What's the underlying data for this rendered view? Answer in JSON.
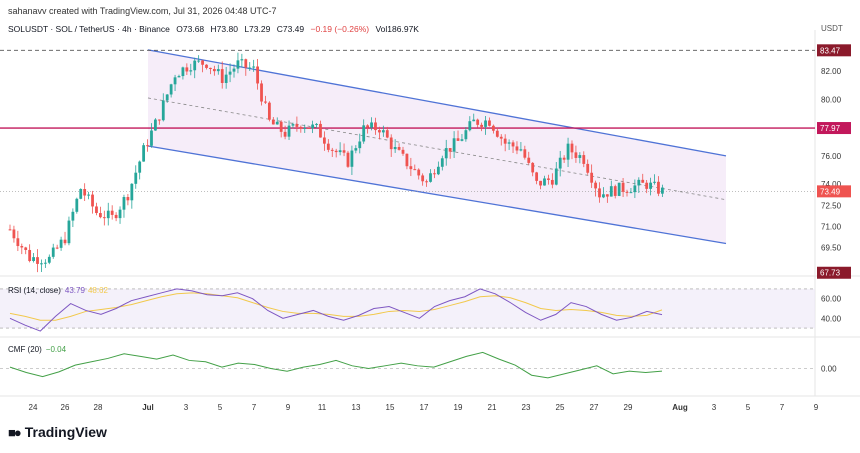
{
  "header": {
    "created_by": "sahanavv created with TradingView.com, Jul 31, 2026 04:48 UTC-7",
    "symbol": "SOLUSDT · SOL / TetherUS · 4h · Binance",
    "open": "O73.68",
    "high": "H73.80",
    "low": "L73.29",
    "close": "C73.49",
    "change": "−0.19 (−0.26%)",
    "volume": "Vol186.97K",
    "currency": "USDT"
  },
  "indicators": {
    "rsi_name": "RSI (14, close)",
    "rsi_value": "43.79",
    "rsi_ma_value": "48.62",
    "cmf_name": "CMF (20)",
    "cmf_value": "−0.04"
  },
  "brand": {
    "name": "TradingView"
  },
  "colors": {
    "up": "#26a69a",
    "down": "#ef5350",
    "channel": "#4f73d6",
    "resistance": "#c2185b",
    "rsi_line": "#7e57c2",
    "rsi_ma": "#f2c94c",
    "cmf_line": "#43a047"
  },
  "chart_data": [
    {
      "type": "candlestick",
      "timeframe": "4h",
      "yticks": [
        "82.00",
        "80.00",
        "78.00",
        "76.00",
        "74.00",
        "72.50",
        "71.00",
        "69.50"
      ],
      "ylim": [
        67.5,
        84.2
      ],
      "x_labels": [
        "24",
        "26",
        "28",
        "Jul",
        "3",
        "5",
        "7",
        "9",
        "11",
        "13",
        "15",
        "17",
        "19",
        "21",
        "23",
        "25",
        "27",
        "29",
        "Aug",
        "3",
        "5",
        "7",
        "9"
      ],
      "price_labels": {
        "top": "83.47",
        "resistance": "77.97",
        "last": "73.49",
        "bottom": "67.73"
      },
      "horizontal_levels": {
        "resistance": 77.97,
        "high": 83.47
      },
      "channel": {
        "upper": [
          [
            "Jul 1",
            83.5
          ],
          [
            "Aug 4",
            76.0
          ]
        ],
        "mid": [
          [
            "Jul 1",
            80.1
          ],
          [
            "Aug 4",
            72.9
          ]
        ],
        "lower": [
          [
            "Jul 1",
            76.7
          ],
          [
            "Aug 4",
            69.8
          ]
        ]
      },
      "candles_close_path": [
        [
          0,
          70.8
        ],
        [
          5,
          68.8
        ],
        [
          10,
          68.7
        ],
        [
          14,
          70.2
        ],
        [
          18,
          73.7
        ],
        [
          22,
          72.0
        ],
        [
          26,
          71.6
        ],
        [
          30,
          73.3
        ],
        [
          34,
          76.4
        ],
        [
          38,
          78.9
        ],
        [
          42,
          81.8
        ],
        [
          46,
          82.5
        ],
        [
          50,
          82.6
        ],
        [
          54,
          81.5
        ],
        [
          58,
          82.5
        ],
        [
          62,
          82.1
        ],
        [
          66,
          78.4
        ],
        [
          70,
          77.6
        ],
        [
          74,
          78.3
        ],
        [
          78,
          77.9
        ],
        [
          82,
          76.5
        ],
        [
          86,
          75.6
        ],
        [
          90,
          77.9
        ],
        [
          94,
          78.0
        ],
        [
          98,
          76.4
        ],
        [
          102,
          75.2
        ],
        [
          106,
          74.1
        ],
        [
          110,
          76.2
        ],
        [
          114,
          77.0
        ],
        [
          118,
          78.4
        ],
        [
          122,
          78.5
        ],
        [
          126,
          76.9
        ],
        [
          130,
          76.5
        ],
        [
          134,
          74.0
        ],
        [
          138,
          74.4
        ],
        [
          142,
          76.5
        ],
        [
          146,
          75.8
        ],
        [
          150,
          73.3
        ],
        [
          154,
          73.6
        ],
        [
          158,
          73.8
        ],
        [
          162,
          74.0
        ],
        [
          166,
          73.49
        ]
      ]
    },
    {
      "type": "line",
      "name": "RSI (14, close)",
      "ylim": [
        25,
        75
      ],
      "yticks": [
        "60.00",
        "40.00"
      ],
      "series": [
        {
          "values": [
            40,
            33,
            27,
            42,
            55,
            48,
            44,
            50,
            58,
            62,
            66,
            70,
            68,
            64,
            63,
            66,
            60,
            48,
            40,
            44,
            48,
            42,
            38,
            43,
            50,
            52,
            46,
            40,
            52,
            58,
            62,
            70,
            65,
            56,
            46,
            38,
            44,
            56,
            52,
            44,
            38,
            41,
            47,
            43.79
          ]
        },
        {
          "values": [
            45,
            42,
            38,
            38,
            42,
            47,
            49,
            51,
            54,
            58,
            62,
            65,
            66,
            65,
            63,
            61,
            56,
            51,
            47,
            45,
            45,
            44,
            42,
            42,
            44,
            47,
            48,
            47,
            49,
            53,
            57,
            62,
            63,
            61,
            56,
            50,
            48,
            49,
            48,
            46,
            43,
            42,
            43,
            48.62
          ]
        }
      ]
    },
    {
      "type": "line",
      "name": "CMF (20)",
      "ylim": [
        -0.35,
        0.35
      ],
      "yticks": [
        "0.00"
      ],
      "series": [
        {
          "values": [
            0.02,
            -0.06,
            -0.12,
            -0.05,
            0.05,
            0.1,
            0.15,
            0.22,
            0.18,
            0.14,
            0.2,
            0.12,
            0.1,
            0.02,
            0.08,
            0.06,
            0.0,
            -0.04,
            0.02,
            0.06,
            0.12,
            0.04,
            0.0,
            0.04,
            0.08,
            0.04,
            0.02,
            0.1,
            0.18,
            0.24,
            0.14,
            0.05,
            -0.1,
            -0.14,
            -0.08,
            -0.02,
            0.04,
            -0.08,
            -0.04,
            -0.06,
            -0.04
          ]
        }
      ]
    }
  ]
}
